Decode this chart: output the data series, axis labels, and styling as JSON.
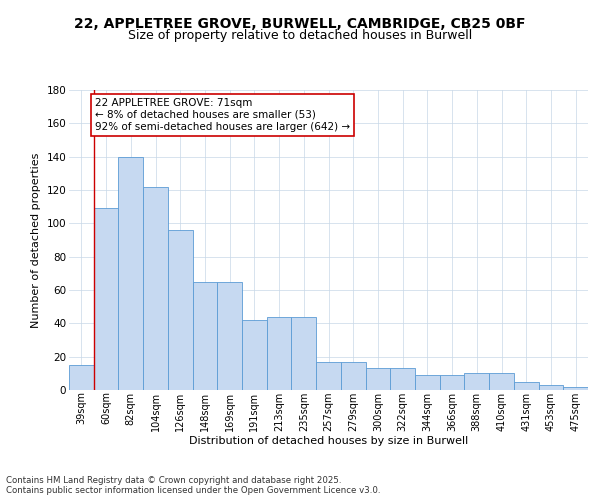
{
  "title_line1": "22, APPLETREE GROVE, BURWELL, CAMBRIDGE, CB25 0BF",
  "title_line2": "Size of property relative to detached houses in Burwell",
  "xlabel": "Distribution of detached houses by size in Burwell",
  "ylabel": "Number of detached properties",
  "categories": [
    "39sqm",
    "60sqm",
    "82sqm",
    "104sqm",
    "126sqm",
    "148sqm",
    "169sqm",
    "191sqm",
    "213sqm",
    "235sqm",
    "257sqm",
    "279sqm",
    "300sqm",
    "322sqm",
    "344sqm",
    "366sqm",
    "388sqm",
    "410sqm",
    "431sqm",
    "453sqm",
    "475sqm"
  ],
  "values": [
    15,
    109,
    140,
    122,
    96,
    65,
    65,
    42,
    44,
    44,
    17,
    17,
    13,
    13,
    9,
    9,
    10,
    10,
    5,
    3,
    2
  ],
  "bar_color": "#c6d9f1",
  "bar_edge_color": "#5b9bd5",
  "grid_color": "#c8d8e8",
  "annotation_text": "22 APPLETREE GROVE: 71sqm\n← 8% of detached houses are smaller (53)\n92% of semi-detached houses are larger (642) →",
  "annotation_box_facecolor": "#ffffff",
  "annotation_box_edgecolor": "#cc0000",
  "marker_line_color": "#cc0000",
  "ylim_max": 180,
  "yticks": [
    0,
    20,
    40,
    60,
    80,
    100,
    120,
    140,
    160,
    180
  ],
  "footer_text": "Contains HM Land Registry data © Crown copyright and database right 2025.\nContains public sector information licensed under the Open Government Licence v3.0."
}
